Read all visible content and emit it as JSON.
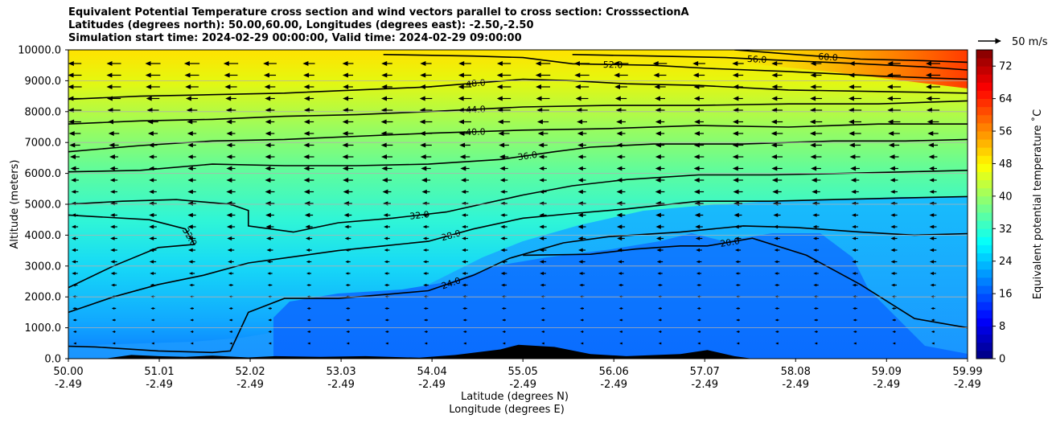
{
  "title": {
    "line1": "Equivalent Potential Temperature cross section and wind vectors parallel to cross section: CrosssectionA",
    "line2": "Latitudes (degrees north): 50.00,60.00, Longitudes (degrees east): -2.50,-2.50",
    "line3": "Simulation start time: 2024-02-29 00:00:00, Valid time: 2024-02-29 09:00:00"
  },
  "chart_data": {
    "type": "heatmap",
    "ylabel": "Altitude (meters)",
    "xlabel_lat": "Latitude (degrees N)",
    "xlabel_lon": "Longitude (degrees E)",
    "ylim": [
      0,
      10000
    ],
    "xlim": [
      50.0,
      59.99
    ],
    "grid": "horizontal",
    "y_ticks": [
      "0.0",
      "1000.0",
      "2000.0",
      "3000.0",
      "4000.0",
      "5000.0",
      "6000.0",
      "7000.0",
      "8000.0",
      "9000.0",
      "10000.0"
    ],
    "x_ticks": [
      {
        "lat": "50.00",
        "lon": "-2.49"
      },
      {
        "lat": "51.01",
        "lon": "-2.49"
      },
      {
        "lat": "52.02",
        "lon": "-2.49"
      },
      {
        "lat": "53.03",
        "lon": "-2.49"
      },
      {
        "lat": "54.04",
        "lon": "-2.49"
      },
      {
        "lat": "55.05",
        "lon": "-2.49"
      },
      {
        "lat": "56.06",
        "lon": "-2.49"
      },
      {
        "lat": "57.07",
        "lon": "-2.49"
      },
      {
        "lat": "58.08",
        "lon": "-2.49"
      },
      {
        "lat": "59.09",
        "lon": "-2.49"
      },
      {
        "lat": "59.99",
        "lon": "-2.49"
      }
    ],
    "colorbar": {
      "label": "Equivalent potential temperature ˚C",
      "min": 0,
      "max": 76,
      "step": 2,
      "ticks": [
        "0",
        "8",
        "16",
        "24",
        "32",
        "40",
        "48",
        "56",
        "64",
        "72"
      ]
    },
    "wind_key": {
      "label": "50 m/s"
    },
    "contours": [
      {
        "level": 20.0,
        "label": "20.0",
        "points": [
          [
            55.05,
            3350
          ],
          [
            55.8,
            3380
          ],
          [
            56.3,
            3550
          ],
          [
            56.8,
            3650
          ],
          [
            57.1,
            3650
          ],
          [
            57.6,
            3900
          ],
          [
            58.2,
            3350
          ],
          [
            58.8,
            2400
          ],
          [
            59.4,
            1300
          ],
          [
            59.99,
            1000
          ]
        ]
      },
      {
        "level": 24.0,
        "label": "24.0",
        "points": [
          [
            50.0,
            400
          ],
          [
            50.3,
            380
          ],
          [
            51.0,
            250
          ],
          [
            51.6,
            200
          ],
          [
            51.8,
            250
          ],
          [
            52.0,
            1500
          ],
          [
            52.4,
            1950
          ],
          [
            53.0,
            1950
          ],
          [
            53.6,
            2100
          ],
          [
            54.0,
            2200
          ],
          [
            54.5,
            2700
          ],
          [
            54.9,
            3250
          ],
          [
            55.5,
            3750
          ],
          [
            56.0,
            3950
          ],
          [
            56.8,
            4100
          ],
          [
            57.5,
            4300
          ],
          [
            58.08,
            4250
          ],
          [
            58.8,
            4100
          ],
          [
            59.4,
            4000
          ],
          [
            59.99,
            4050
          ]
        ]
      },
      {
        "level": 28.0,
        "label": "28.0",
        "points": [
          [
            50.0,
            1500
          ],
          [
            50.5,
            2000
          ],
          [
            51.0,
            2400
          ],
          [
            51.5,
            2700
          ],
          [
            52.0,
            3100
          ],
          [
            52.5,
            3300
          ],
          [
            53.0,
            3500
          ],
          [
            53.5,
            3650
          ],
          [
            54.0,
            3800
          ],
          [
            54.5,
            4200
          ],
          [
            55.05,
            4550
          ],
          [
            55.6,
            4700
          ],
          [
            56.2,
            4850
          ],
          [
            57.0,
            5100
          ],
          [
            57.8,
            5100
          ],
          [
            58.5,
            5150
          ],
          [
            59.2,
            5200
          ],
          [
            59.99,
            5250
          ]
        ]
      },
      {
        "level": 32.0,
        "label": "32.0",
        "points": [
          [
            50.0,
            2300
          ],
          [
            50.5,
            3000
          ],
          [
            51.0,
            3600
          ],
          [
            51.4,
            3700
          ],
          [
            51.3,
            4200
          ],
          [
            50.9,
            4500
          ],
          [
            50.3,
            4600
          ],
          [
            50.0,
            4650
          ]
        ]
      },
      {
        "level": 32.0,
        "label": "32.0",
        "points": [
          [
            50.0,
            5000
          ],
          [
            50.6,
            5100
          ],
          [
            51.2,
            5150
          ],
          [
            51.8,
            5000
          ],
          [
            52.0,
            4800
          ],
          [
            52.0,
            4300
          ],
          [
            52.5,
            4100
          ],
          [
            53.0,
            4400
          ],
          [
            53.6,
            4550
          ],
          [
            54.2,
            4750
          ],
          [
            55.05,
            5300
          ],
          [
            55.6,
            5600
          ],
          [
            56.2,
            5800
          ],
          [
            57.0,
            5950
          ],
          [
            57.8,
            5950
          ],
          [
            58.6,
            6000
          ],
          [
            59.3,
            6050
          ],
          [
            59.99,
            6100
          ]
        ]
      },
      {
        "level": 36.0,
        "label": "36.0",
        "points": [
          [
            50.0,
            6050
          ],
          [
            50.8,
            6100
          ],
          [
            51.6,
            6300
          ],
          [
            52.4,
            6250
          ],
          [
            53.2,
            6250
          ],
          [
            54.0,
            6300
          ],
          [
            54.8,
            6450
          ],
          [
            55.4,
            6700
          ],
          [
            55.8,
            6850
          ],
          [
            56.5,
            6950
          ],
          [
            57.5,
            6950
          ],
          [
            58.5,
            7050
          ],
          [
            59.3,
            7050
          ],
          [
            59.99,
            7100
          ]
        ]
      },
      {
        "level": 40.0,
        "label": "40.0",
        "points": [
          [
            50.0,
            6700
          ],
          [
            50.8,
            6900
          ],
          [
            51.6,
            7050
          ],
          [
            52.4,
            7100
          ],
          [
            53.2,
            7200
          ],
          [
            54.0,
            7300
          ],
          [
            55.05,
            7400
          ],
          [
            56.0,
            7450
          ],
          [
            57.0,
            7550
          ],
          [
            58.0,
            7500
          ],
          [
            59.0,
            7600
          ],
          [
            59.99,
            7600
          ]
        ]
      },
      {
        "level": 44.0,
        "label": "44.0",
        "points": [
          [
            50.0,
            7600
          ],
          [
            50.8,
            7700
          ],
          [
            51.6,
            7750
          ],
          [
            52.4,
            7850
          ],
          [
            53.2,
            7900
          ],
          [
            54.0,
            8000
          ],
          [
            55.05,
            8150
          ],
          [
            56.0,
            8200
          ],
          [
            57.0,
            8200
          ],
          [
            58.0,
            8250
          ],
          [
            59.0,
            8250
          ],
          [
            59.99,
            8350
          ]
        ]
      },
      {
        "level": 48.0,
        "label": "48.0",
        "points": [
          [
            50.0,
            8400
          ],
          [
            50.8,
            8500
          ],
          [
            51.6,
            8550
          ],
          [
            52.4,
            8600
          ],
          [
            53.2,
            8700
          ],
          [
            54.0,
            8800
          ],
          [
            55.05,
            9050
          ],
          [
            55.6,
            9000
          ],
          [
            56.2,
            8900
          ],
          [
            57.0,
            8850
          ],
          [
            58.0,
            8700
          ],
          [
            59.0,
            8650
          ],
          [
            59.99,
            8600
          ]
        ]
      },
      {
        "level": 52.0,
        "label": "52.0",
        "points": [
          [
            53.5,
            9850
          ],
          [
            54.5,
            9800
          ],
          [
            55.05,
            9750
          ],
          [
            55.6,
            9550
          ],
          [
            56.5,
            9500
          ],
          [
            57.1,
            9400
          ],
          [
            58.0,
            9300
          ],
          [
            59.0,
            9150
          ],
          [
            59.99,
            9050
          ]
        ]
      },
      {
        "level": 56.0,
        "label": "56.0",
        "points": [
          [
            55.6,
            9850
          ],
          [
            56.5,
            9800
          ],
          [
            57.3,
            9750
          ],
          [
            58.0,
            9650
          ],
          [
            58.8,
            9550
          ],
          [
            59.5,
            9450
          ],
          [
            59.99,
            9350
          ]
        ]
      },
      {
        "level": 60.0,
        "label": "60.0",
        "points": [
          [
            57.4,
            10000
          ],
          [
            58.08,
            9850
          ],
          [
            58.8,
            9700
          ],
          [
            59.5,
            9650
          ],
          [
            59.99,
            9600
          ]
        ]
      }
    ],
    "terrain": [
      [
        50.0,
        0
      ],
      [
        50.4,
        0
      ],
      [
        50.7,
        120
      ],
      [
        51.0,
        80
      ],
      [
        51.3,
        60
      ],
      [
        51.6,
        100
      ],
      [
        52.0,
        40
      ],
      [
        52.3,
        80
      ],
      [
        52.8,
        60
      ],
      [
        53.3,
        80
      ],
      [
        53.9,
        30
      ],
      [
        54.3,
        120
      ],
      [
        54.8,
        300
      ],
      [
        55.0,
        450
      ],
      [
        55.4,
        380
      ],
      [
        55.8,
        150
      ],
      [
        56.2,
        80
      ],
      [
        56.8,
        150
      ],
      [
        57.1,
        280
      ],
      [
        57.4,
        80
      ],
      [
        57.6,
        0
      ],
      [
        59.99,
        0
      ]
    ],
    "wind": {
      "u_ms": -12,
      "w_ms": 0,
      "note": "wind vectors point toward decreasing latitude"
    }
  }
}
